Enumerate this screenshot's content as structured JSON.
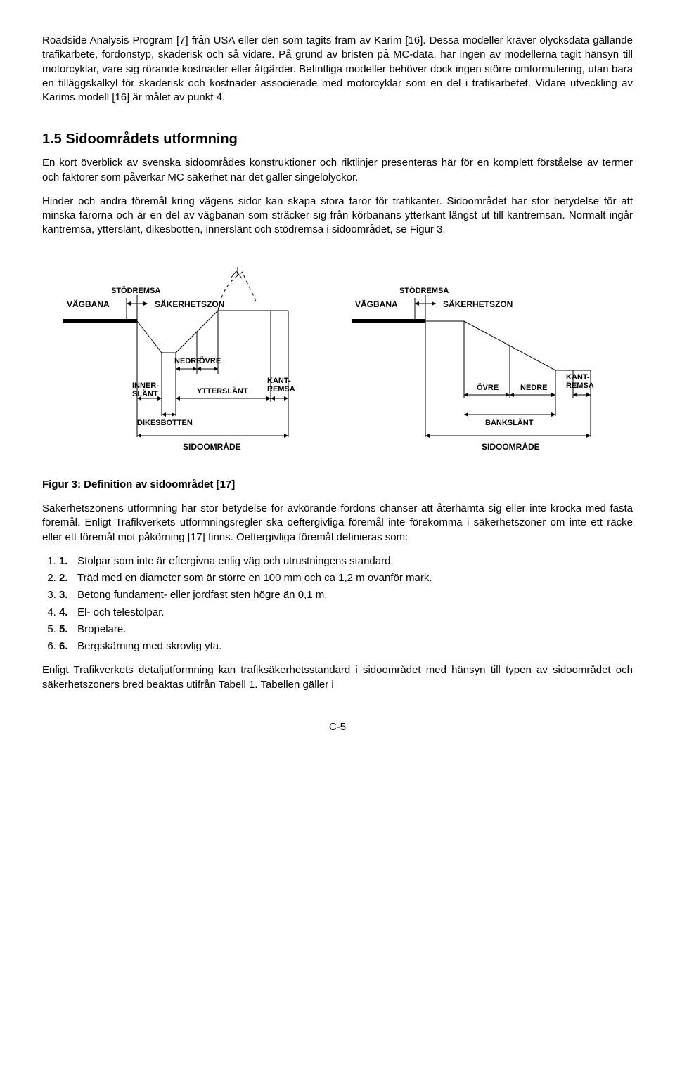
{
  "para1": "Roadside Analysis Program [7] från USA eller den som tagits fram av Karim [16]. Dessa modeller kräver olycksdata gällande trafikarbete, fordonstyp, skaderisk och så vidare. På grund av bristen på MC-data, har ingen av modellerna tagit hänsyn till motorcyklar, vare sig rörande kostnader eller åtgärder. Befintliga modeller behöver dock ingen större omformulering, utan bara en tilläggskalkyl för skaderisk och kostnader associerade med motorcyklar som en del i trafikarbetet. Vidare utveckling av Karims modell [16] är målet av punkt 4.",
  "heading": "1.5  Sidoområdets utformning",
  "para2": "En kort överblick av svenska sidoområdes konstruktioner och riktlinjer presenteras här för en komplett förståelse av termer och faktorer som påverkar MC säkerhet när det gäller singelolyckor.",
  "para3": "Hinder och andra föremål kring vägens sidor kan skapa stora faror för trafikanter. Sidoområdet har stor betydelse för att minska farorna och är en del av vägbanan som sträcker sig från körbanans ytterkant längst ut till kantremsan. Normalt ingår kantremsa, ytterslänt, dikesbotten, innerslänt och stödremsa i sidoområdet, se Figur 3.",
  "caption": "Figur 3: Definition av sidoområdet [17]",
  "para4": "Säkerhetszonens utformning har stor betydelse för avkörande fordons chanser att återhämta sig eller inte krocka med fasta föremål. Enligt Trafikverkets utformningsregler ska oeftergivliga föremål inte förekomma i säkerhetszoner om inte ett räcke eller ett föremål mot påkörning [17] finns. Oeftergivliga föremål definieras som:",
  "list": [
    "Stolpar som inte är eftergivna enlig väg och utrustningens standard.",
    "Träd med en diameter som är större en 100 mm och ca 1,2 m ovanför mark.",
    "Betong fundament- eller jordfast sten högre än 0,1 m.",
    "El- och telestolpar.",
    "Bropelare.",
    "Bergskärning med skrovlig yta."
  ],
  "para5": "Enligt Trafikverkets detaljutformning kan trafiksäkerhetsstandard i sidoområdet med hänsyn till typen av sidoområdet och säkerhetszoners bred beaktas utifrån Tabell 1. Tabellen gäller i",
  "pageNum": "C-5",
  "diagram": {
    "left": {
      "labels": {
        "stodremsa": "STÖDREMSA",
        "vagbana": "VÄGBANA",
        "sakerhet": "SÄKERHETSZON",
        "nedre": "NEDRE",
        "ovre": "ÖVRE",
        "inner": "INNER-\nSLÄNT",
        "ytter": "YTTERSLÄNT",
        "kant": "KANT-\nREMSA",
        "dikes": "DIKESBOTTEN",
        "sido": "SIDOOMRÅDE"
      }
    },
    "right": {
      "labels": {
        "stodremsa": "STÖDREMSA",
        "vagbana": "VÄGBANA",
        "sakerhet": "SÄKERHETSZON",
        "ovre": "ÖVRE",
        "nedre": "NEDRE",
        "kant": "KANT-\nREMSA",
        "bank": "BANKSLÄNT",
        "sido": "SIDOOMRÅDE"
      }
    }
  }
}
